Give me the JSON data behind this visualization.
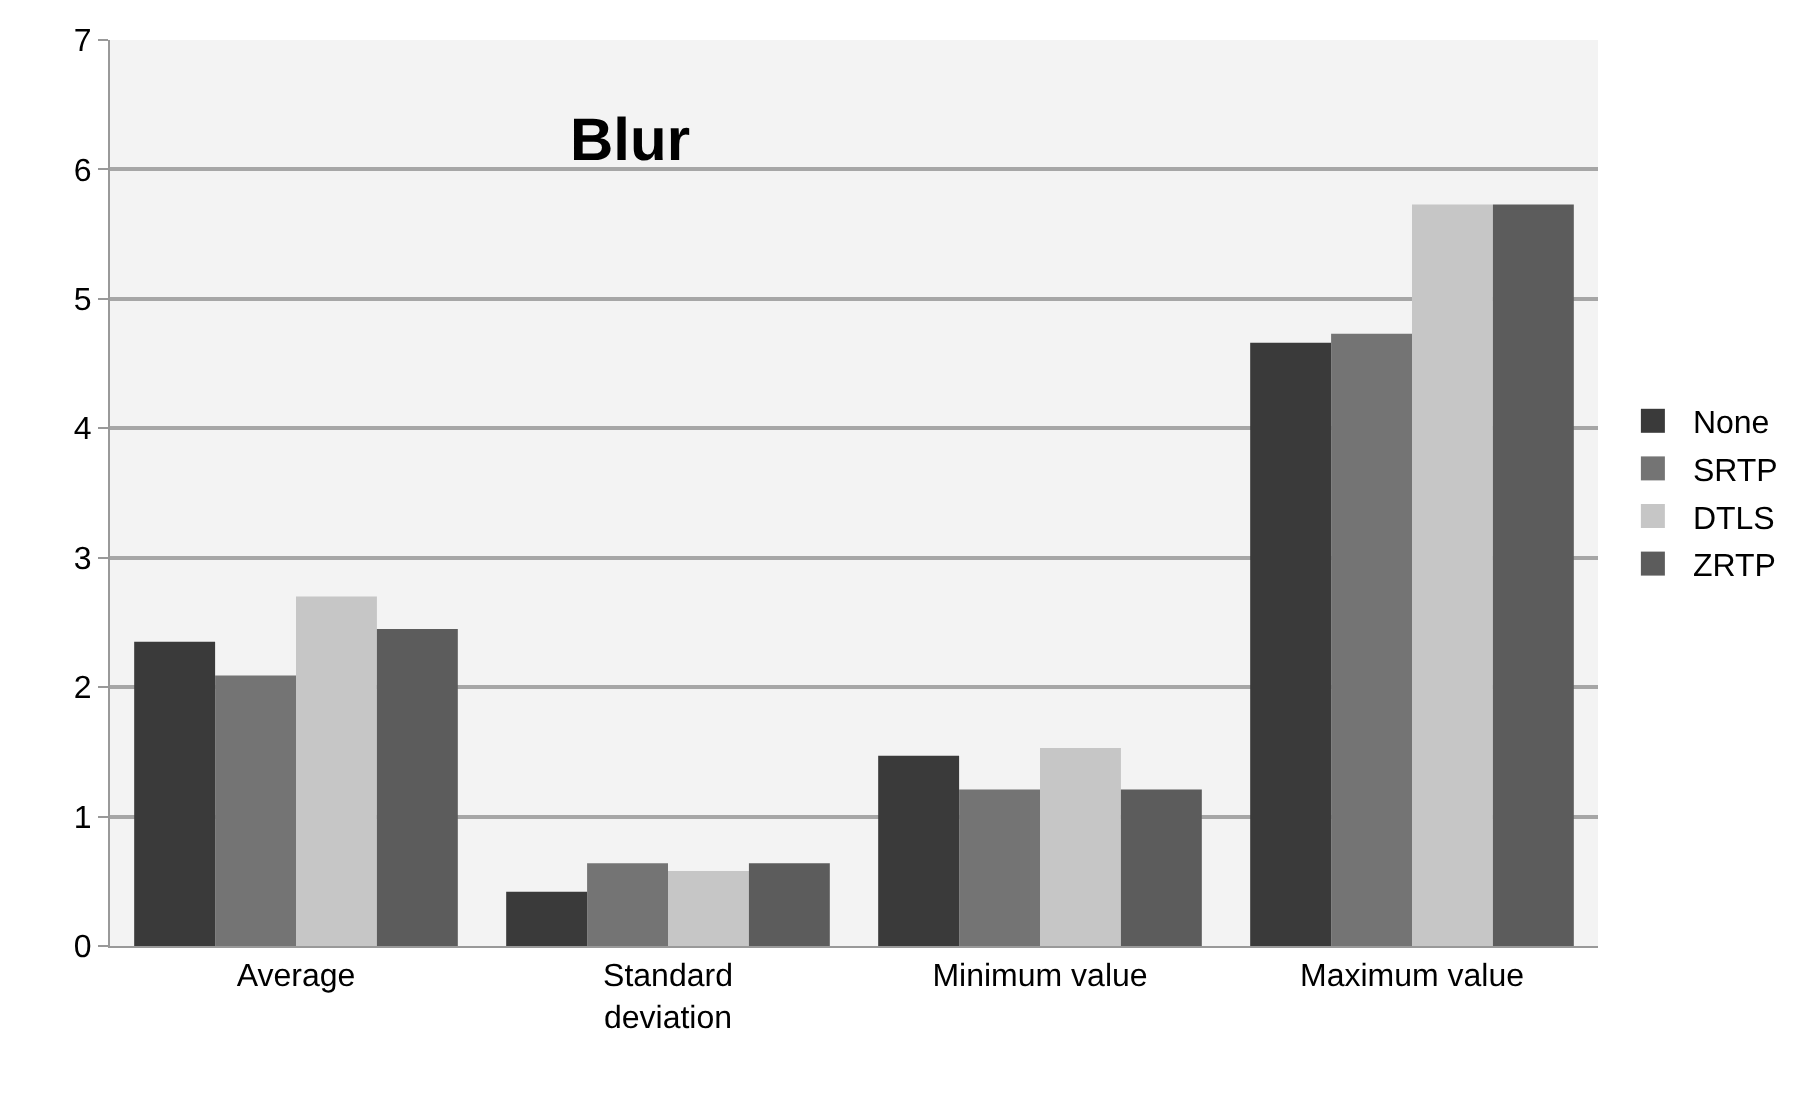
{
  "chart_data": {
    "type": "bar",
    "title": "Blur",
    "categories": [
      "Average",
      "Standard deviation",
      "Minimum value",
      "Maximum value"
    ],
    "series": [
      {
        "name": "None",
        "color": "#3a3a3a",
        "values": [
          2.35,
          0.42,
          1.47,
          4.66
        ]
      },
      {
        "name": "SRTP",
        "color": "#747474",
        "values": [
          2.09,
          0.64,
          1.21,
          4.73
        ]
      },
      {
        "name": "DTLS",
        "color": "#c6c6c6",
        "values": [
          2.7,
          0.58,
          1.53,
          5.73
        ]
      },
      {
        "name": "ZRTP",
        "color": "#5c5c5c",
        "values": [
          2.45,
          0.64,
          1.21,
          5.73
        ]
      }
    ],
    "ylim": [
      0,
      7
    ],
    "yticks": [
      0,
      1,
      2,
      3,
      4,
      5,
      6,
      7
    ],
    "grid": "y",
    "legend": "right"
  }
}
